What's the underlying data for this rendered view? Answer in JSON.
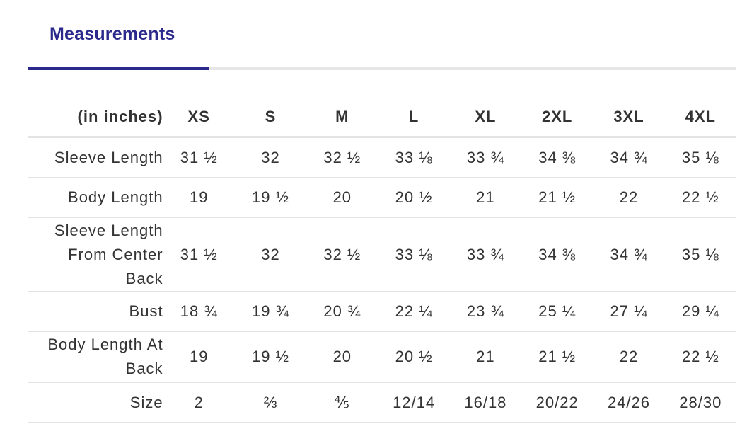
{
  "tabs": {
    "active_label": "Measurements"
  },
  "table": {
    "unit_label": "(in inches)",
    "sizes": [
      "XS",
      "S",
      "M",
      "L",
      "XL",
      "2XL",
      "3XL",
      "4XL"
    ],
    "rows": [
      {
        "label": "Sleeve Length",
        "values": [
          "31 ½",
          "32",
          "32 ½",
          "33 ⅛",
          "33 ¾",
          "34 ⅜",
          "34 ¾",
          "35 ⅛"
        ]
      },
      {
        "label": "Body Length",
        "values": [
          "19",
          "19 ½",
          "20",
          "20 ½",
          "21",
          "21 ½",
          "22",
          "22 ½"
        ]
      },
      {
        "label": "Sleeve Length From Center Back",
        "values": [
          "31 ½",
          "32",
          "32 ½",
          "33 ⅛",
          "33 ¾",
          "34 ⅜",
          "34 ¾",
          "35 ⅛"
        ]
      },
      {
        "label": "Bust",
        "values": [
          "18 ¾",
          "19 ¾",
          "20 ¾",
          "22 ¼",
          "23 ¾",
          "25 ¼",
          "27 ¼",
          "29 ¼"
        ]
      },
      {
        "label": "Body Length At Back",
        "values": [
          "19",
          "19 ½",
          "20",
          "20 ½",
          "21",
          "21 ½",
          "22",
          "22 ½"
        ]
      },
      {
        "label": "Size",
        "values": [
          "2",
          "⅔",
          "⅘",
          "12/14",
          "16/18",
          "20/22",
          "24/26",
          "28/30"
        ]
      }
    ]
  },
  "colors": {
    "accent": "#2b2a8c",
    "text": "#333333",
    "divider": "#e3e3e3"
  }
}
